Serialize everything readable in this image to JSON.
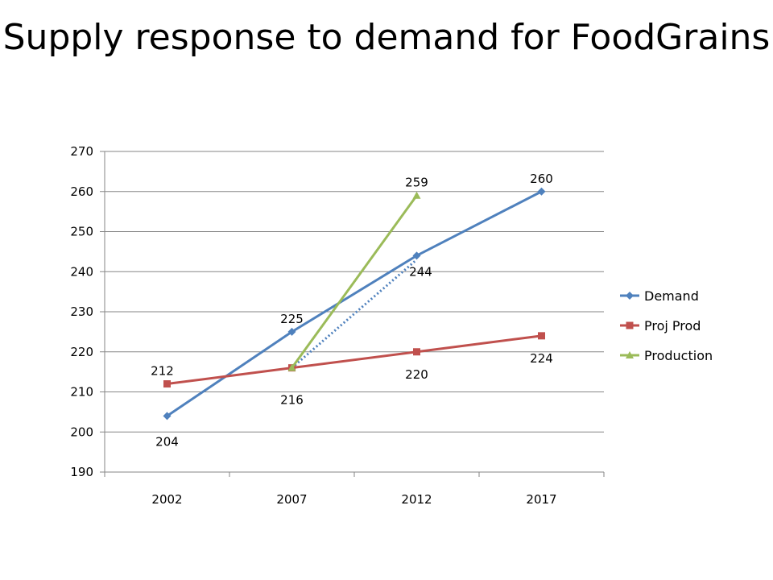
{
  "chart_data": {
    "type": "line",
    "title": "Supply response to demand for FoodGrains",
    "categories": [
      "2002",
      "2007",
      "2012",
      "2017"
    ],
    "ylim": [
      190,
      270
    ],
    "yticks": [
      190,
      200,
      210,
      220,
      230,
      240,
      250,
      260,
      270
    ],
    "grid": true,
    "legend_position": "right",
    "series": [
      {
        "name": "Demand",
        "values": [
          204,
          225,
          244,
          260
        ],
        "color": "#4f81bd",
        "marker": "diamond",
        "labels": [
          "204",
          "225",
          "244",
          "260"
        ]
      },
      {
        "name": "Proj Prod",
        "values": [
          212,
          216,
          220,
          224
        ],
        "color": "#c0504d",
        "marker": "square",
        "labels": [
          "212",
          "216",
          "220",
          "224"
        ]
      },
      {
        "name": "Production",
        "values": [
          null,
          216,
          259,
          null
        ],
        "color": "#9bbb59",
        "marker": "triangle",
        "labels": [
          "",
          "",
          "259",
          ""
        ]
      }
    ],
    "trendline": {
      "color": "#4f81bd",
      "style": "dotted",
      "from": [
        "2007",
        216
      ],
      "to": [
        "2012",
        243
      ]
    }
  }
}
